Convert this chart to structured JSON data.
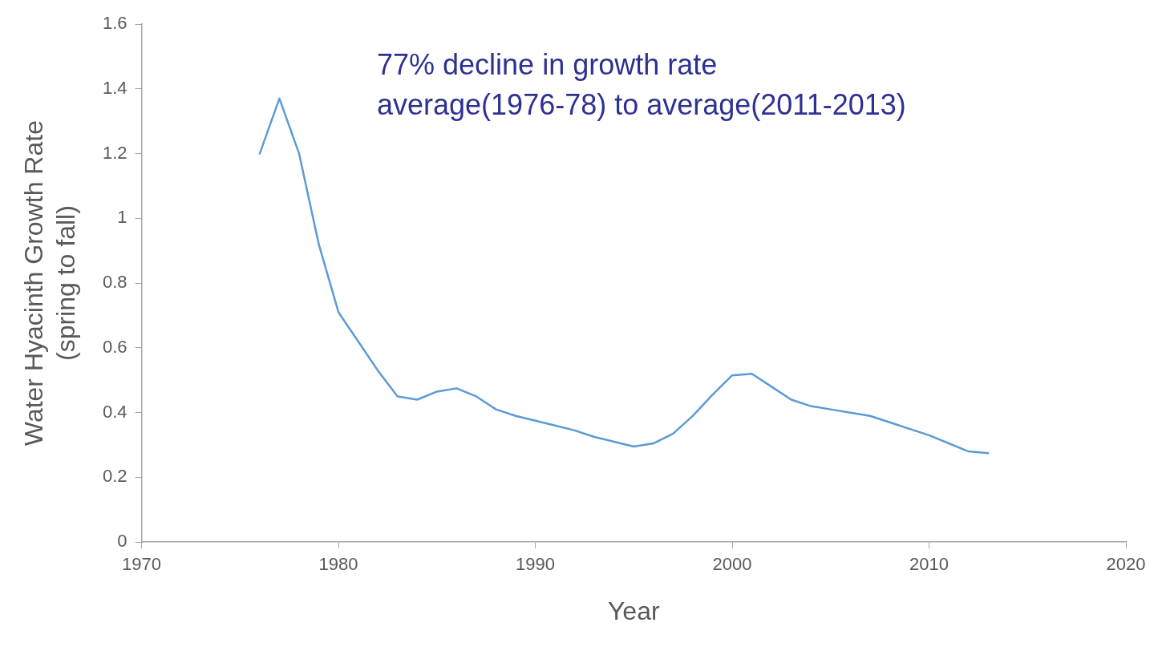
{
  "chart_data": {
    "type": "line",
    "xlabel": "Year",
    "ylabel": "Water Hyacinth Growth Rate\n(spring to fall)",
    "annotations": [
      "77% decline in growth rate",
      "average(1976-78) to average(2011-2013)"
    ],
    "x": [
      1976,
      1977,
      1978,
      1979,
      1980,
      1981,
      1982,
      1983,
      1984,
      1985,
      1986,
      1987,
      1988,
      1989,
      1990,
      1991,
      1992,
      1993,
      1994,
      1995,
      1996,
      1997,
      1998,
      1999,
      2000,
      2001,
      2002,
      2003,
      2004,
      2005,
      2006,
      2007,
      2008,
      2009,
      2010,
      2011,
      2012,
      2013
    ],
    "series": [
      {
        "color": "#5b9bd5",
        "values": [
          1.2,
          1.37,
          1.2,
          0.92,
          0.71,
          0.62,
          0.53,
          0.45,
          0.44,
          0.465,
          0.475,
          0.45,
          0.41,
          0.39,
          0.375,
          0.36,
          0.345,
          0.325,
          0.31,
          0.295,
          0.305,
          0.335,
          0.39,
          0.455,
          0.515,
          0.52,
          0.48,
          0.44,
          0.42,
          0.41,
          0.4,
          0.39,
          0.37,
          0.35,
          0.33,
          0.305,
          0.28,
          0.275
        ]
      }
    ],
    "xlim": [
      1970,
      2020
    ],
    "xticks": [
      1970,
      1980,
      1990,
      2000,
      2010,
      2020
    ],
    "ylim": [
      0,
      1.6
    ],
    "yticks": [
      0,
      0.2,
      0.4,
      0.6,
      0.8,
      1,
      1.2,
      1.4,
      1.6
    ],
    "grid": false,
    "legend": false,
    "marker": "none",
    "line_style": "solid"
  }
}
